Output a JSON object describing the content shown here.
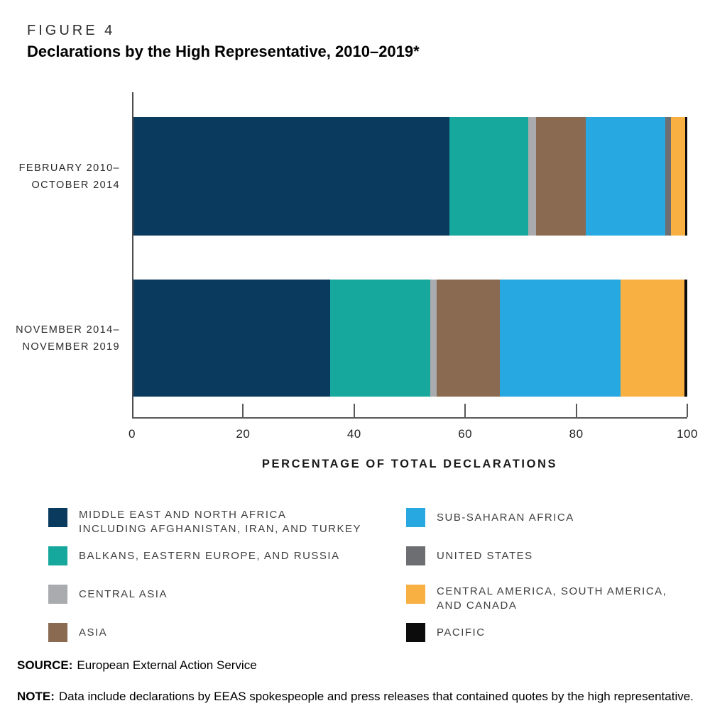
{
  "figure": {
    "label": "FIGURE 4",
    "title": "Declarations by the High Representative, 2010–2019*"
  },
  "chart_data": {
    "type": "stacked-bar-horizontal",
    "title": "Declarations by the High Representative, 2010–2019*",
    "x_axis": {
      "label": "PERCENTAGE OF TOTAL DECLARATIONS",
      "min": 0,
      "max": 100,
      "ticks": [
        0,
        20,
        40,
        60,
        80,
        100
      ],
      "unit": "percent"
    },
    "bars": [
      {
        "label_lines": [
          "FEBRUARY 2010–",
          "OCTOBER 2014"
        ]
      },
      {
        "label_lines": [
          "NOVEMBER 2014–",
          "NOVEMBER 2019"
        ]
      }
    ],
    "regions": [
      {
        "id": "middle-east-and-north-africa",
        "lines": [
          "MIDDLE EAST AND NORTH AFRICA",
          "INCLUDING AFGHANISTAN, IRAN, AND TURKEY"
        ],
        "color": "#0a3a5e",
        "values": [
          57.0,
          35.5
        ]
      },
      {
        "id": "balkans-eastern-europe-and-russia",
        "lines": [
          "BALKANS, EASTERN EUROPE, AND RUSSIA"
        ],
        "color": "#16a89c",
        "values": [
          14.3,
          18.1
        ]
      },
      {
        "id": "central-asia",
        "lines": [
          "CENTRAL ASIA"
        ],
        "color": "#a9abae",
        "values": [
          1.4,
          1.2
        ]
      },
      {
        "id": "asia",
        "lines": [
          "ASIA"
        ],
        "color": "#8a6b52",
        "values": [
          9.0,
          11.4
        ]
      },
      {
        "id": "sub-saharan-africa",
        "lines": [
          "SUB-SAHARAN AFRICA"
        ],
        "color": "#28a8e0",
        "values": [
          14.3,
          21.8
        ]
      },
      {
        "id": "united-states",
        "lines": [
          "UNITED STATES"
        ],
        "color": "#6d6e71",
        "values": [
          1.0,
          0
        ]
      },
      {
        "id": "central-america-south-america-and-canada",
        "lines": [
          "CENTRAL AMERICA, SOUTH AMERICA,",
          "AND CANADA"
        ],
        "color": "#f9b042",
        "values": [
          2.6,
          11.5
        ]
      },
      {
        "id": "pacific",
        "lines": [
          "PACIFIC"
        ],
        "color": "#0c0c0c",
        "values": [
          0.4,
          0.5
        ]
      }
    ],
    "legend": {
      "position": "below-chart",
      "columns": [
        [
          0,
          1,
          2,
          3
        ],
        [
          4,
          5,
          6,
          7
        ]
      ]
    },
    "grid": "off"
  },
  "source": {
    "prefix": "SOURCE:",
    "text": "European External Action Service"
  },
  "note": {
    "prefix": "NOTE:",
    "text": "Data include declarations by EEAS spokespeople and press releases that contained quotes by the high representative."
  }
}
